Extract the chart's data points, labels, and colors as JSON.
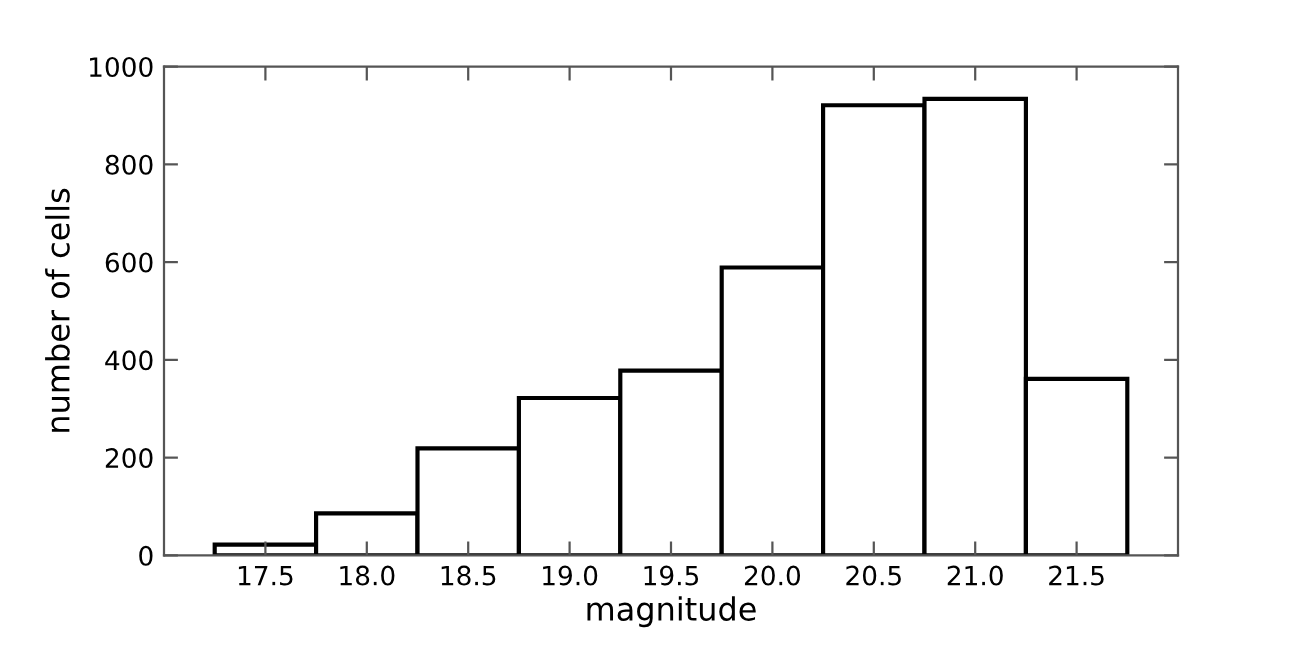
{
  "chart_data": {
    "type": "histogram",
    "xlabel": "magnitude",
    "ylabel": "number of cells",
    "bins": [
      17.25,
      17.75,
      18.25,
      18.75,
      19.25,
      19.75,
      20.25,
      20.75,
      21.25,
      21.75
    ],
    "values": [
      22,
      86,
      219,
      322,
      378,
      589,
      921,
      934,
      361
    ],
    "color": "#ffffff",
    "xlim": [
      17.0,
      22.0
    ],
    "xticks": [
      {
        "value": 17.5,
        "label": "17.5"
      },
      {
        "value": 18,
        "label": "18.0"
      },
      {
        "value": 18.5,
        "label": "18.5"
      },
      {
        "value": 19,
        "label": "19.0"
      },
      {
        "value": 19.5,
        "label": "19.5"
      },
      {
        "value": 20,
        "label": "20.0"
      },
      {
        "value": 20.5,
        "label": "20.5"
      },
      {
        "value": 21,
        "label": "21.0"
      },
      {
        "value": 21.5,
        "label": "21.5"
      }
    ],
    "ylim": [
      0,
      1000
    ],
    "yticks": [
      0,
      200,
      400,
      600,
      800,
      1000
    ],
    "grid": false
  }
}
